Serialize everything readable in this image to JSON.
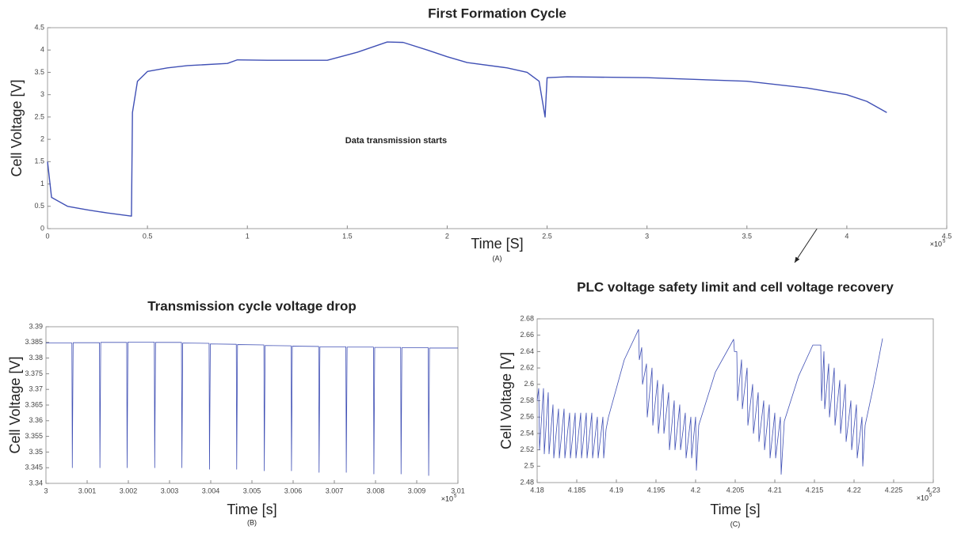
{
  "chart_data": [
    {
      "type": "line",
      "title": "First Formation Cycle",
      "xlabel": "Time [S]",
      "ylabel": "Cell Voltage [V]",
      "panel_label": "(A)",
      "x_multiplier_base": "×10",
      "x_multiplier_exp": "5",
      "annotation": "Data transmission starts",
      "color": "#4050b5",
      "grid": false,
      "xlim": [
        0,
        4.5
      ],
      "ylim": [
        0,
        4.5
      ],
      "xticks": [
        0,
        0.5,
        1,
        1.5,
        2,
        2.5,
        3,
        3.5,
        4,
        4.5
      ],
      "yticks": [
        0,
        0.5,
        1,
        1.5,
        2,
        2.5,
        3,
        3.5,
        4,
        4.5
      ],
      "x": [
        0,
        0.02,
        0.1,
        0.2,
        0.3,
        0.42,
        0.425,
        0.45,
        0.5,
        0.6,
        0.7,
        0.9,
        0.95,
        1.1,
        1.4,
        1.55,
        1.7,
        1.78,
        1.9,
        2.0,
        2.1,
        2.3,
        2.4,
        2.46,
        2.49,
        2.5,
        2.6,
        3,
        3.5,
        3.8,
        4.0,
        4.1,
        4.2
      ],
      "values": [
        1.5,
        0.7,
        0.5,
        0.42,
        0.35,
        0.28,
        2.6,
        3.3,
        3.52,
        3.6,
        3.65,
        3.7,
        3.78,
        3.77,
        3.77,
        3.95,
        4.18,
        4.17,
        4.0,
        3.85,
        3.72,
        3.6,
        3.5,
        3.3,
        2.5,
        3.38,
        3.4,
        3.38,
        3.3,
        3.15,
        3.0,
        2.85,
        2.6
      ]
    },
    {
      "type": "line",
      "title": "Transmission cycle voltage drop",
      "xlabel": "Time [s]",
      "ylabel": "Cell Voltage [V]",
      "panel_label": "(B)",
      "x_multiplier_base": "×10",
      "x_multiplier_exp": "5",
      "color": "#4050b5",
      "grid": false,
      "xlim": [
        3,
        3.01
      ],
      "ylim": [
        3.34,
        3.39
      ],
      "xticks": [
        3,
        3.001,
        3.002,
        3.003,
        3.004,
        3.005,
        3.006,
        3.007,
        3.008,
        3.009,
        3.01
      ],
      "yticks": [
        3.34,
        3.345,
        3.35,
        3.355,
        3.36,
        3.365,
        3.37,
        3.375,
        3.38,
        3.385,
        3.39
      ],
      "x": [
        3,
        3.00063,
        3.00064,
        3.00066,
        3.0013,
        3.00131,
        3.00133,
        3.00196,
        3.00197,
        3.00199,
        3.00263,
        3.00264,
        3.00266,
        3.00329,
        3.0033,
        3.00332,
        3.00396,
        3.00397,
        3.00399,
        3.00462,
        3.00463,
        3.00465,
        3.00529,
        3.0053,
        3.00532,
        3.00595,
        3.00596,
        3.00598,
        3.00662,
        3.00663,
        3.00665,
        3.00728,
        3.00729,
        3.00731,
        3.00795,
        3.00796,
        3.00798,
        3.00861,
        3.00862,
        3.00864,
        3.00928,
        3.00929,
        3.00931,
        3.01
      ],
      "values": [
        3.3848,
        3.3848,
        3.345,
        3.3849,
        3.3849,
        3.345,
        3.385,
        3.385,
        3.345,
        3.3851,
        3.3851,
        3.345,
        3.385,
        3.385,
        3.345,
        3.3848,
        3.3847,
        3.3445,
        3.3845,
        3.3844,
        3.3445,
        3.3843,
        3.3842,
        3.344,
        3.384,
        3.3839,
        3.344,
        3.3838,
        3.3837,
        3.3435,
        3.3836,
        3.3836,
        3.3435,
        3.3835,
        3.3835,
        3.343,
        3.3834,
        3.3834,
        3.343,
        3.3833,
        3.3833,
        3.3425,
        3.3832,
        3.3832
      ]
    },
    {
      "type": "line",
      "title": "PLC voltage safety limit and cell voltage recovery",
      "xlabel": "Time [s]",
      "ylabel": "Cell Voltage [V]",
      "panel_label": "(C)",
      "x_multiplier_base": "×10",
      "x_multiplier_exp": "5",
      "color": "#4050b5",
      "grid": false,
      "xlim": [
        4.18,
        4.23
      ],
      "ylim": [
        2.48,
        2.68
      ],
      "xticks": [
        4.18,
        4.185,
        4.19,
        4.195,
        4.2,
        4.205,
        4.21,
        4.215,
        4.22,
        4.225,
        4.23
      ],
      "yticks": [
        2.48,
        2.5,
        2.52,
        2.54,
        2.56,
        2.58,
        2.6,
        2.62,
        2.64,
        2.66,
        2.68
      ],
      "x": [
        4.18,
        4.1802,
        4.1803,
        4.1808,
        4.1809,
        4.1814,
        4.1815,
        4.182,
        4.1821,
        4.1827,
        4.1828,
        4.1834,
        4.1835,
        4.1841,
        4.1842,
        4.1848,
        4.1849,
        4.1855,
        4.1856,
        4.1862,
        4.1863,
        4.1869,
        4.187,
        4.1876,
        4.1877,
        4.1883,
        4.1884,
        4.1887,
        4.189,
        4.191,
        4.1928,
        4.1929,
        4.1932,
        4.1933,
        4.1938,
        4.1939,
        4.1945,
        4.1946,
        4.1952,
        4.1953,
        4.1959,
        4.196,
        4.1966,
        4.1967,
        4.1973,
        4.1974,
        4.198,
        4.1981,
        4.1987,
        4.1988,
        4.1994,
        4.1995,
        4.2,
        4.2001,
        4.2004,
        4.2025,
        4.2048,
        4.2049,
        4.2052,
        4.2053,
        4.2058,
        4.2059,
        4.2065,
        4.2066,
        4.2072,
        4.2073,
        4.2079,
        4.208,
        4.2086,
        4.2087,
        4.2093,
        4.2094,
        4.21,
        4.2101,
        4.2107,
        4.2108,
        4.2112,
        4.213,
        4.2148,
        4.2158,
        4.2159,
        4.2162,
        4.2163,
        4.2168,
        4.2169,
        4.2175,
        4.2176,
        4.2182,
        4.2183,
        4.2189,
        4.219,
        4.2196,
        4.2197,
        4.2203,
        4.2204,
        4.221,
        4.2211,
        4.2214,
        4.2225,
        4.2236
      ],
      "values": [
        2.58,
        2.595,
        2.52,
        2.595,
        2.515,
        2.59,
        2.515,
        2.575,
        2.51,
        2.57,
        2.51,
        2.57,
        2.51,
        2.565,
        2.51,
        2.565,
        2.51,
        2.565,
        2.51,
        2.565,
        2.51,
        2.565,
        2.51,
        2.56,
        2.51,
        2.56,
        2.51,
        2.545,
        2.56,
        2.63,
        2.667,
        2.63,
        2.645,
        2.6,
        2.625,
        2.56,
        2.62,
        2.55,
        2.605,
        2.54,
        2.6,
        2.54,
        2.59,
        2.52,
        2.58,
        2.52,
        2.575,
        2.52,
        2.565,
        2.51,
        2.56,
        2.51,
        2.56,
        2.495,
        2.55,
        2.615,
        2.655,
        2.64,
        2.64,
        2.58,
        2.63,
        2.57,
        2.62,
        2.55,
        2.6,
        2.54,
        2.59,
        2.53,
        2.58,
        2.52,
        2.575,
        2.51,
        2.565,
        2.51,
        2.56,
        2.49,
        2.555,
        2.61,
        2.648,
        2.648,
        2.58,
        2.64,
        2.57,
        2.625,
        2.56,
        2.62,
        2.55,
        2.605,
        2.54,
        2.6,
        2.53,
        2.58,
        2.52,
        2.575,
        2.51,
        2.56,
        2.5,
        2.55,
        2.6,
        2.656
      ]
    }
  ]
}
